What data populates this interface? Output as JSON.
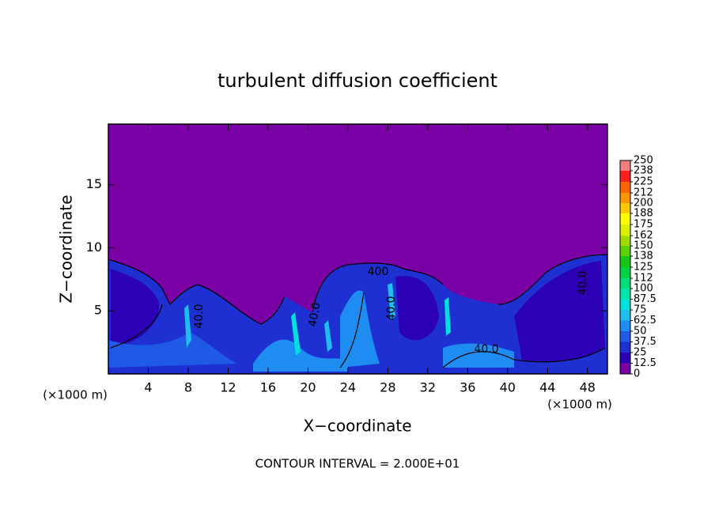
{
  "chart_data": {
    "type": "contour",
    "title": "turbulent diffusion coefficient",
    "x_label": "X−coordinate",
    "y_label": "Z−coordinate",
    "x_unit_left": "(×1000 m)",
    "x_unit_right": "(×1000 m)",
    "footer": "CONTOUR INTERVAL = 2.000E+01",
    "xlim": [
      0,
      50
    ],
    "ylim": [
      0,
      19.8
    ],
    "xticks": [
      4,
      8,
      12,
      16,
      20,
      24,
      28,
      32,
      36,
      40,
      44,
      48
    ],
    "yticks": [
      5,
      10,
      15
    ],
    "contour_labels": [
      "40.0",
      "40.0",
      "40.0",
      "40.0",
      "40.0",
      "400"
    ],
    "colorbar": {
      "levels": [
        0,
        12.5,
        25,
        37.5,
        50,
        62.5,
        75,
        87.5,
        100,
        112,
        125,
        138,
        150,
        162,
        175,
        188,
        200,
        212,
        225,
        238,
        250
      ],
      "colors": [
        "#7a00a6",
        "#2c00b4",
        "#1e30d2",
        "#1e5ae6",
        "#1e8cf0",
        "#1ebef0",
        "#00e0dc",
        "#00e6aa",
        "#00dc78",
        "#00d246",
        "#14c814",
        "#5ad200",
        "#a0dc00",
        "#dcf000",
        "#ffff00",
        "#ffc800",
        "#ff9600",
        "#ff6400",
        "#ff1e1e",
        "#f08080"
      ]
    }
  }
}
